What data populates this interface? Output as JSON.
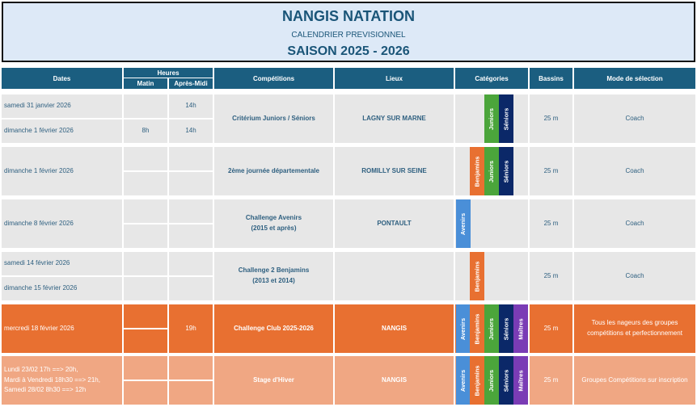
{
  "title": {
    "club": "NANGIS NATATION",
    "subtitle": "CALENDRIER PREVISIONNEL",
    "season": "SAISON 2025 - 2026"
  },
  "headers": {
    "dates": "Dates",
    "heures": "Heures",
    "matin": "Matin",
    "apres_midi": "Après-Midi",
    "competitions": "Compétitions",
    "lieux": "Lieux",
    "categories": "Catégories",
    "bassins": "Bassins",
    "mode": "Mode de sélection"
  },
  "category_colors": {
    "Avenirs": "#4a8fd8",
    "Benjamins": "#e87031",
    "Juniors": "#4ba53b",
    "Séniors": "#0b2868",
    "Maîtres": "#7a3cb5"
  },
  "rows": [
    {
      "dates": [
        "samedi 31 janvier 2026",
        "dimanche 1 février 2026"
      ],
      "matin": [
        "",
        "8h"
      ],
      "apres_midi": [
        "14h",
        "14h"
      ],
      "competition": "Critérium Juniors / Séniors",
      "lieu": "LAGNY SUR MARNE",
      "categories": [
        "Juniors",
        "Séniors"
      ],
      "bassin": "25 m",
      "mode": "Coach"
    },
    {
      "dates": [
        "dimanche 1 février 2026"
      ],
      "matin": [
        "",
        ""
      ],
      "apres_midi": [
        "",
        ""
      ],
      "competition": "2ème journée départementale",
      "lieu": "ROMILLY SUR SEINE",
      "categories": [
        "Benjamins",
        "Juniors",
        "Séniors"
      ],
      "bassin": "25 m",
      "mode": "Coach"
    },
    {
      "dates": [
        "dimanche 8 février 2026"
      ],
      "matin": [
        "",
        ""
      ],
      "apres_midi": [
        "",
        ""
      ],
      "competition": "Challenge Avenirs\n(2015 et après)",
      "lieu": "PONTAULT",
      "categories": [
        "Avenirs"
      ],
      "bassin": "25 m",
      "mode": "Coach"
    },
    {
      "dates": [
        "samedi 14 février 2026",
        "dimanche 15 février 2026"
      ],
      "matin": [
        "",
        ""
      ],
      "apres_midi": [
        "",
        ""
      ],
      "competition": "Challenge 2 Benjamins\n(2013 et 2014)",
      "lieu": "",
      "categories": [
        "Benjamins"
      ],
      "bassin": "25 m",
      "mode": "Coach"
    },
    {
      "dates": [
        "mercredi 18 février 2026"
      ],
      "matin": [
        "",
        ""
      ],
      "apres_midi": [
        "19h"
      ],
      "competition": "Challenge Club 2025-2026",
      "lieu": "NANGIS",
      "categories": [
        "Avenirs",
        "Benjamins",
        "Juniors",
        "Séniors",
        "Maîtres"
      ],
      "bassin": "25 m",
      "mode": "Tous les nageurs des groupes compétitions et perfectionnement"
    },
    {
      "dates": [
        "Lundi 23/02 17h ==> 20h,\nMardi à Vendredi 18h30 ==> 21h,\nSamedi 28/02 8h30 ==> 12h"
      ],
      "matin": [
        "",
        ""
      ],
      "apres_midi": [
        "",
        ""
      ],
      "competition": "Stage d'Hiver",
      "lieu": "NANGIS",
      "categories": [
        "Avenirs",
        "Benjamins",
        "Juniors",
        "Séniors",
        "Maîtres"
      ],
      "bassin": "25 m",
      "mode": "Groupes Compétitions sur inscription"
    }
  ]
}
